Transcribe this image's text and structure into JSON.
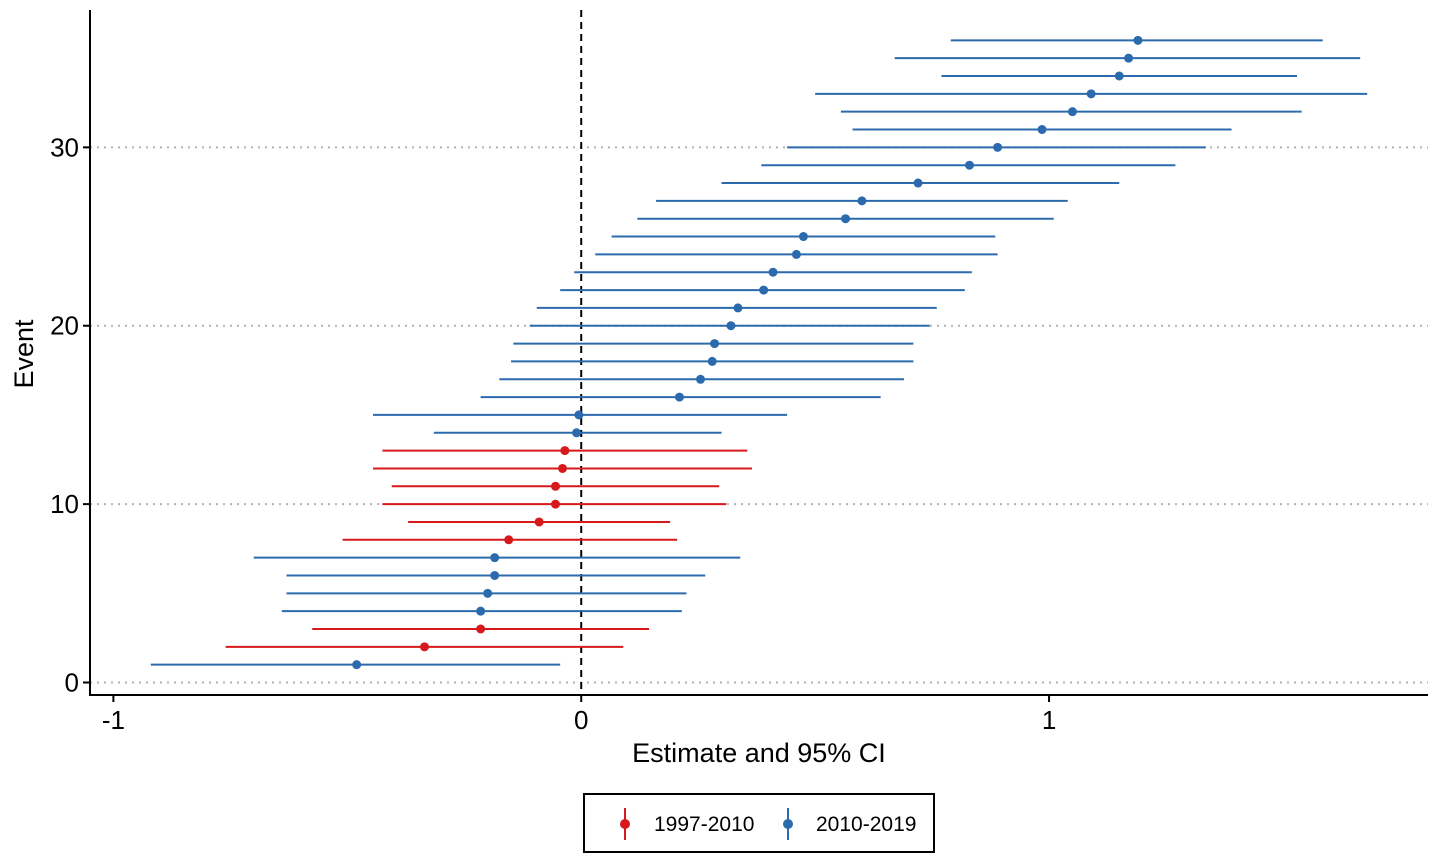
{
  "chart_data": {
    "type": "scatter",
    "title": "",
    "xlabel": "Estimate and 95% CI",
    "ylabel": "Event",
    "xlim": [
      -1.05,
      1.81
    ],
    "ylim": [
      -0.7,
      37.7
    ],
    "x_ticks": [
      -1,
      0,
      1
    ],
    "x_tick_labels": [
      "-1",
      "0",
      "1"
    ],
    "y_ticks": [
      0,
      10,
      20,
      30
    ],
    "y_tick_labels": [
      "0",
      "10",
      "20",
      "30"
    ],
    "grid": "horizontal dotted at major y ticks",
    "reference_line": {
      "x": 0,
      "style": "dashed"
    },
    "legend_position": "bottom",
    "series": [
      {
        "name": "1997-2010",
        "color": "#d7191c",
        "points": [
          {
            "event": 2,
            "estimate": -0.335,
            "lower": -0.76,
            "upper": 0.09
          },
          {
            "event": 3,
            "estimate": -0.215,
            "lower": -0.575,
            "upper": 0.145
          },
          {
            "event": 8,
            "estimate": -0.155,
            "lower": -0.51,
            "upper": 0.205
          },
          {
            "event": 9,
            "estimate": -0.09,
            "lower": -0.37,
            "upper": 0.19
          },
          {
            "event": 10,
            "estimate": -0.055,
            "lower": -0.425,
            "upper": 0.31
          },
          {
            "event": 11,
            "estimate": -0.055,
            "lower": -0.405,
            "upper": 0.295
          },
          {
            "event": 12,
            "estimate": -0.04,
            "lower": -0.445,
            "upper": 0.365
          },
          {
            "event": 13,
            "estimate": -0.035,
            "lower": -0.425,
            "upper": 0.355
          }
        ]
      },
      {
        "name": "2010-2019",
        "color": "#2c6aae",
        "points": [
          {
            "event": 1,
            "estimate": -0.48,
            "lower": -0.92,
            "upper": -0.045
          },
          {
            "event": 4,
            "estimate": -0.215,
            "lower": -0.64,
            "upper": 0.215
          },
          {
            "event": 5,
            "estimate": -0.2,
            "lower": -0.63,
            "upper": 0.225
          },
          {
            "event": 6,
            "estimate": -0.185,
            "lower": -0.63,
            "upper": 0.265
          },
          {
            "event": 7,
            "estimate": -0.185,
            "lower": -0.7,
            "upper": 0.34
          },
          {
            "event": 14,
            "estimate": -0.01,
            "lower": -0.315,
            "upper": 0.3
          },
          {
            "event": 15,
            "estimate": -0.005,
            "lower": -0.445,
            "upper": 0.44
          },
          {
            "event": 16,
            "estimate": 0.21,
            "lower": -0.215,
            "upper": 0.64
          },
          {
            "event": 17,
            "estimate": 0.255,
            "lower": -0.175,
            "upper": 0.69
          },
          {
            "event": 18,
            "estimate": 0.28,
            "lower": -0.15,
            "upper": 0.71
          },
          {
            "event": 19,
            "estimate": 0.285,
            "lower": -0.145,
            "upper": 0.71
          },
          {
            "event": 20,
            "estimate": 0.32,
            "lower": -0.11,
            "upper": 0.745
          },
          {
            "event": 21,
            "estimate": 0.335,
            "lower": -0.095,
            "upper": 0.76
          },
          {
            "event": 22,
            "estimate": 0.39,
            "lower": -0.045,
            "upper": 0.82
          },
          {
            "event": 23,
            "estimate": 0.41,
            "lower": -0.015,
            "upper": 0.835
          },
          {
            "event": 24,
            "estimate": 0.46,
            "lower": 0.03,
            "upper": 0.89
          },
          {
            "event": 25,
            "estimate": 0.475,
            "lower": 0.065,
            "upper": 0.885
          },
          {
            "event": 26,
            "estimate": 0.565,
            "lower": 0.12,
            "upper": 1.01
          },
          {
            "event": 27,
            "estimate": 0.6,
            "lower": 0.16,
            "upper": 1.04
          },
          {
            "event": 28,
            "estimate": 0.72,
            "lower": 0.3,
            "upper": 1.15
          },
          {
            "event": 29,
            "estimate": 0.83,
            "lower": 0.385,
            "upper": 1.27
          },
          {
            "event": 30,
            "estimate": 0.89,
            "lower": 0.44,
            "upper": 1.335
          },
          {
            "event": 31,
            "estimate": 0.985,
            "lower": 0.58,
            "upper": 1.39
          },
          {
            "event": 32,
            "estimate": 1.05,
            "lower": 0.555,
            "upper": 1.54
          },
          {
            "event": 33,
            "estimate": 1.09,
            "lower": 0.5,
            "upper": 1.68
          },
          {
            "event": 34,
            "estimate": 1.15,
            "lower": 0.77,
            "upper": 1.53
          },
          {
            "event": 35,
            "estimate": 1.17,
            "lower": 0.67,
            "upper": 1.665
          },
          {
            "event": 36,
            "estimate": 1.19,
            "lower": 0.79,
            "upper": 1.585
          }
        ]
      }
    ]
  }
}
